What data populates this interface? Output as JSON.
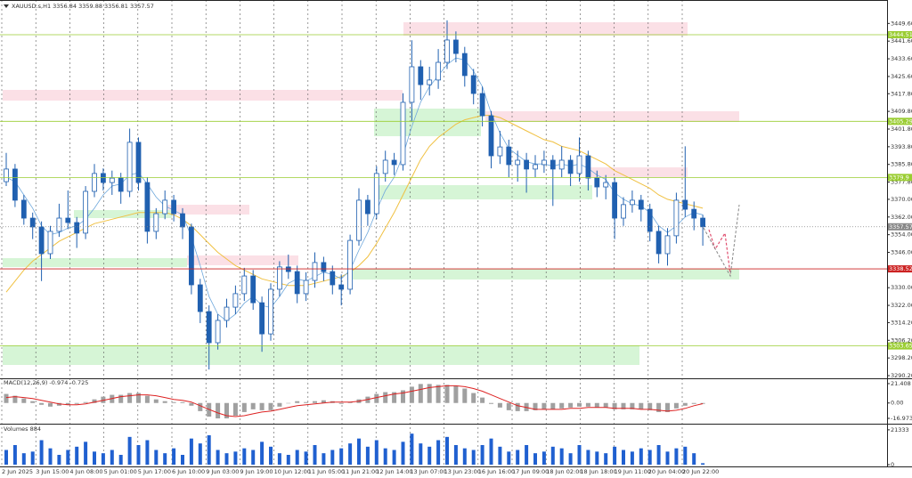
{
  "chart_data": [
    {
      "type": "candlestick",
      "title": "XAUUSD.s,H1  3356.84 3359.88 3356.81 3357.57",
      "color": "#2060b0",
      "ylim": [
        3289.4,
        3458.6
      ],
      "yticks": [
        {
          "value": 3449.6,
          "label": "3449.60"
        },
        {
          "value": 3441.6,
          "label": "3441.60"
        },
        {
          "value": 3433.6,
          "label": "3433.60"
        },
        {
          "value": 3425.6,
          "label": "3425.60"
        },
        {
          "value": 3417.8,
          "label": "3417.80"
        },
        {
          "value": 3409.8,
          "label": "3409.80"
        },
        {
          "value": 3401.8,
          "label": "3401.80"
        },
        {
          "value": 3393.8,
          "label": "3393.80"
        },
        {
          "value": 3385.8,
          "label": "3385.80"
        },
        {
          "value": 3377.8,
          "label": "3377.80"
        },
        {
          "value": 3370,
          "label": "3370.00"
        },
        {
          "value": 3362,
          "label": "3362.00"
        },
        {
          "value": 3354,
          "label": "3354.00"
        },
        {
          "value": 3346,
          "label": "3346.00"
        },
        {
          "value": 3330,
          "label": "3330.00"
        },
        {
          "value": 3322,
          "label": "3322.00"
        },
        {
          "value": 3314.2,
          "label": "3314.20"
        },
        {
          "value": 3306.2,
          "label": "3306.20"
        },
        {
          "value": 3298.2,
          "label": "3298.20"
        },
        {
          "value": 3290.2,
          "label": "3290.20"
        }
      ],
      "x_labels": [
        "2 Jun 2025",
        "3 Jun 15:00",
        "4 Jun 08:00",
        "5 Jun 01:00",
        "5 Jun 17:00",
        "6 Jun 10:00",
        "9 Jun 03:00",
        "9 Jun 19:00",
        "10 Jun 12:00",
        "11 Jun 05:00",
        "11 Jun 21:00",
        "12 Jun 14:00",
        "13 Jun 07:00",
        "13 Jun 23:00",
        "16 Jun 16:00",
        "17 Jun 09:00",
        "18 Jun 02:00",
        "18 Jun 18:00",
        "19 Jun 11:00",
        "20 Jun 04:00",
        "20 Jun 22:00"
      ],
      "open": [
        3378.0,
        3383.7,
        3369.6,
        3361.5,
        3357.5,
        3345.4,
        3355.5,
        3361.5,
        3359.5,
        3354.7,
        3373.6,
        3381.7,
        3377.6,
        3379.6,
        3373.6,
        3395.8,
        3377.6,
        3355.5,
        3363.5,
        3369.6,
        3363.5,
        3357.5,
        3331.3,
        3319.2,
        3305.1,
        3315.2,
        3321.2,
        3327.3,
        3335.3,
        3323.2,
        3309.1,
        3329.3,
        3339.4,
        3337.3,
        3327.3,
        3333.3,
        3341.4,
        3337.3,
        3331.3,
        3329.3,
        3351.4,
        3369.6,
        3363.5,
        3381.7,
        3387.7,
        3385.7,
        3413.9,
        3430.0,
        3421.9,
        3424.0,
        3432.0,
        3442.1,
        3436.0,
        3426.0,
        3417.9,
        3407.8,
        3389.7,
        3393.7,
        3385.7,
        3387.7,
        3383.7,
        3385.7,
        3387.7,
        3383.7,
        3387.7,
        3381.7,
        3389.7,
        3379.6,
        3375.6,
        3377.6,
        3361.5,
        3367.6,
        3369.6,
        3365.5,
        3355.5,
        3345.4,
        3353.5,
        3369.6,
        3365.5,
        3361.5
      ],
      "high": [
        3391.0,
        3386.0,
        3372.0,
        3364.0,
        3360.0,
        3358.0,
        3368.0,
        3374.0,
        3362.0,
        3376.0,
        3386.0,
        3384.0,
        3383.0,
        3382.0,
        3402.0,
        3398.0,
        3380.0,
        3366.0,
        3374.0,
        3372.0,
        3366.0,
        3359.0,
        3334.0,
        3322.0,
        3318.0,
        3325.0,
        3331.0,
        3339.0,
        3338.0,
        3326.0,
        3332.0,
        3342.0,
        3345.0,
        3340.0,
        3337.0,
        3346.0,
        3344.0,
        3340.0,
        3336.0,
        3354.0,
        3375.0,
        3372.0,
        3385.0,
        3392.0,
        3391.0,
        3418.0,
        3442.0,
        3433.0,
        3430.0,
        3438.0,
        3451.0,
        3446.0,
        3439.0,
        3429.0,
        3421.0,
        3410.0,
        3401.0,
        3397.0,
        3392.0,
        3391.0,
        3390.0,
        3392.0,
        3390.0,
        3394.0,
        3390.0,
        3398.0,
        3392.0,
        3383.0,
        3381.0,
        3380.0,
        3371.0,
        3374.0,
        3372.0,
        3368.0,
        3358.0,
        3357.0,
        3373.0,
        3394.0,
        3369.0,
        3363.0
      ],
      "low": [
        3376.0,
        3366.5,
        3358.5,
        3352.0,
        3333.0,
        3343.0,
        3353.0,
        3356.5,
        3348.0,
        3352.0,
        3371.0,
        3374.0,
        3372.0,
        3368.0,
        3371.0,
        3374.0,
        3350.0,
        3352.0,
        3361.0,
        3360.0,
        3352.0,
        3327.0,
        3314.0,
        3293.0,
        3302.0,
        3312.0,
        3318.0,
        3324.0,
        3320.0,
        3301.0,
        3306.0,
        3326.0,
        3334.0,
        3323.0,
        3324.0,
        3330.0,
        3333.0,
        3327.0,
        3322.0,
        3327.0,
        3349.0,
        3358.0,
        3361.0,
        3378.0,
        3381.0,
        3383.0,
        3405.0,
        3415.0,
        3417.0,
        3420.0,
        3429.0,
        3432.0,
        3421.0,
        3413.0,
        3403.0,
        3384.0,
        3386.0,
        3380.0,
        3378.0,
        3373.0,
        3380.0,
        3382.0,
        3367.0,
        3380.0,
        3376.0,
        3378.0,
        3374.0,
        3371.0,
        3370.0,
        3352.0,
        3358.0,
        3364.0,
        3360.0,
        3351.0,
        3341.0,
        3340.0,
        3350.0,
        3362.0,
        3356.0,
        3349.0
      ],
      "close": [
        3383.7,
        3369.6,
        3361.5,
        3357.5,
        3345.4,
        3355.5,
        3361.5,
        3359.5,
        3354.7,
        3373.6,
        3381.7,
        3377.6,
        3379.6,
        3373.6,
        3395.8,
        3377.6,
        3355.5,
        3363.5,
        3369.6,
        3363.5,
        3357.5,
        3331.3,
        3319.2,
        3305.1,
        3315.2,
        3321.2,
        3327.3,
        3335.3,
        3323.2,
        3309.1,
        3329.3,
        3339.4,
        3337.3,
        3327.3,
        3333.3,
        3341.4,
        3337.3,
        3331.3,
        3329.3,
        3351.4,
        3369.6,
        3363.5,
        3381.7,
        3387.7,
        3385.7,
        3413.9,
        3430.0,
        3421.9,
        3424.0,
        3432.0,
        3442.1,
        3436.0,
        3426.0,
        3417.9,
        3407.8,
        3389.7,
        3393.7,
        3385.7,
        3387.7,
        3383.7,
        3385.7,
        3387.7,
        3383.7,
        3387.7,
        3381.7,
        3389.7,
        3379.6,
        3375.6,
        3377.6,
        3361.5,
        3367.6,
        3369.6,
        3365.5,
        3355.5,
        3345.4,
        3353.5,
        3369.6,
        3365.5,
        3361.5,
        3357.57
      ],
      "ma_fast": {
        "color": "#6fa8dc",
        "values": [
          3380,
          3378,
          3372,
          3366,
          3358,
          3354,
          3355,
          3357,
          3358,
          3361,
          3366,
          3372,
          3376,
          3377,
          3381,
          3382,
          3377,
          3371,
          3367,
          3365,
          3363,
          3353,
          3340,
          3326,
          3318,
          3315,
          3318,
          3323,
          3326,
          3322,
          3321,
          3326,
          3332,
          3334,
          3333,
          3335,
          3337,
          3336,
          3334,
          3338,
          3347,
          3355,
          3365,
          3374,
          3380,
          3390,
          3403,
          3414,
          3421,
          3426,
          3431,
          3434,
          3433,
          3428,
          3421,
          3409,
          3400,
          3393,
          3390,
          3387,
          3386,
          3386,
          3385,
          3386,
          3385,
          3386,
          3384,
          3381,
          3379,
          3373,
          3370,
          3368,
          3367,
          3364,
          3358,
          3355,
          3358,
          3362,
          3364,
          3363
        ]
      },
      "ma_slow": {
        "color": "#f0c040",
        "values": [
          3328,
          3333,
          3338,
          3342,
          3345,
          3348,
          3351,
          3353,
          3355,
          3357,
          3359,
          3360,
          3361,
          3362,
          3363,
          3364,
          3364,
          3364,
          3364,
          3363,
          3361,
          3358,
          3354,
          3350,
          3346,
          3343,
          3340,
          3338,
          3336,
          3334,
          3333,
          3332,
          3331,
          3331,
          3331,
          3332,
          3333,
          3334,
          3335,
          3337,
          3340,
          3344,
          3350,
          3357,
          3364,
          3372,
          3380,
          3388,
          3394,
          3398,
          3401,
          3404,
          3406,
          3407,
          3408,
          3408,
          3407,
          3405,
          3403,
          3401,
          3399,
          3397,
          3396,
          3394,
          3393,
          3392,
          3390,
          3388,
          3386,
          3383,
          3381,
          3379,
          3377,
          3375,
          3372,
          3370,
          3369,
          3368,
          3367,
          3366
        ]
      },
      "price_levels": [
        {
          "value": 3444.51,
          "color": "#9acd32"
        },
        {
          "value": 3405.29,
          "color": "#9acd32"
        },
        {
          "value": 3379.9,
          "color": "#9acd32"
        },
        {
          "value": 3357.57,
          "color": "#888888"
        },
        {
          "value": 3338.52,
          "color": "#cc2222"
        },
        {
          "value": 3303.65,
          "color": "#9acd32"
        }
      ]
    },
    {
      "type": "macd",
      "title": "MACD(12,26,9) -0.974 -0.725",
      "ylim": [
        -20.9,
        25.3
      ],
      "yticks": [
        21.408,
        {
          "value": 0,
          "label": "0.00"
        },
        -16.973
      ],
      "color": "#a0a0a0",
      "values": [
        10,
        8,
        5,
        2,
        -2,
        -4,
        -3,
        -2,
        -1,
        1,
        4,
        7,
        9,
        9,
        11,
        11,
        8,
        4,
        2,
        1,
        1,
        -3,
        -9,
        -15,
        -17,
        -17,
        -14,
        -10,
        -7,
        -8,
        -8,
        -4,
        0,
        2,
        1,
        2,
        3,
        2,
        -1,
        1,
        4,
        7,
        10,
        12,
        12,
        14,
        18,
        21,
        21,
        20,
        20,
        19,
        16,
        11,
        6,
        -1,
        -5,
        -8,
        -9,
        -9,
        -8,
        -7,
        -7,
        -6,
        -5,
        -4,
        -4,
        -5,
        -5,
        -7,
        -7,
        -7,
        -7,
        -8,
        -10,
        -10,
        -6,
        -3,
        -1,
        -0.974
      ],
      "signal": {
        "color": "#dd2222",
        "values": [
          6,
          7,
          6,
          5,
          3,
          1,
          -1,
          -2,
          -2,
          -1,
          1,
          3,
          5,
          7,
          8,
          9,
          9,
          8,
          6,
          4,
          3,
          1,
          -3,
          -7,
          -11,
          -14,
          -15,
          -14,
          -12,
          -10,
          -9,
          -7,
          -5,
          -3,
          -2,
          -1,
          0,
          1,
          1,
          1,
          2,
          4,
          6,
          8,
          10,
          11,
          13,
          15,
          17,
          18,
          19,
          19,
          18,
          16,
          13,
          9,
          5,
          1,
          -3,
          -5,
          -7,
          -7,
          -7,
          -7,
          -6,
          -6,
          -5,
          -5,
          -5,
          -6,
          -6,
          -6,
          -7,
          -7,
          -8,
          -9,
          -8,
          -6,
          -3,
          -0.725
        ]
      }
    },
    {
      "type": "bar",
      "title": "Volumes 884",
      "ylim": [
        0,
        24000
      ],
      "yticks": [
        21333,
        0
      ],
      "color": "#2060d0",
      "values": [
        9000,
        12000,
        7000,
        8000,
        15000,
        10000,
        6000,
        9000,
        11000,
        14000,
        8000,
        7000,
        9000,
        6000,
        17000,
        12000,
        15000,
        9000,
        7000,
        10000,
        6000,
        16000,
        13000,
        18000,
        9000,
        7000,
        8000,
        10000,
        9000,
        14000,
        11000,
        7000,
        6000,
        9000,
        8000,
        12000,
        7000,
        9000,
        10000,
        13000,
        16000,
        11000,
        15000,
        10000,
        9000,
        14000,
        19000,
        13000,
        11000,
        15000,
        17000,
        12000,
        10000,
        9000,
        12000,
        16000,
        11000,
        8000,
        9000,
        12000,
        7000,
        8000,
        11000,
        10000,
        7000,
        12000,
        9000,
        8000,
        7000,
        11000,
        9000,
        8000,
        10000,
        9000,
        12000,
        8000,
        10000,
        11000,
        7000,
        884
      ]
    }
  ]
}
